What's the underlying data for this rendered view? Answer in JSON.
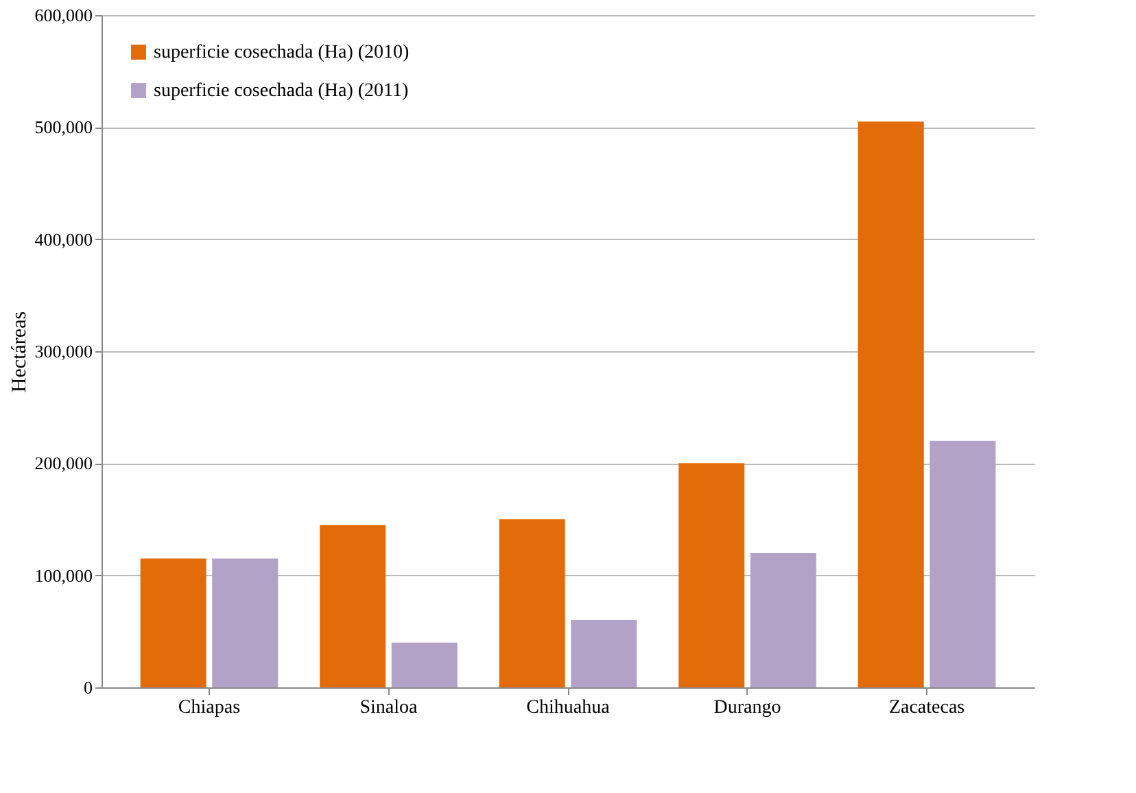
{
  "chart_data": {
    "type": "bar",
    "ylabel": "Hectáreas",
    "categories": [
      "Chiapas",
      "Sinaloa",
      "Chihuahua",
      "Durango",
      "Zacatecas"
    ],
    "series": [
      {
        "name": "superficie cosechada (Ha) (2010)",
        "color": "#e36c0a",
        "values": [
          115000,
          145000,
          150000,
          200000,
          505000
        ]
      },
      {
        "name": "superficie cosechada (Ha) (2011)",
        "color": "#b3a2c7",
        "values": [
          115000,
          40000,
          60000,
          120000,
          220000
        ]
      }
    ],
    "ylim": [
      0,
      600000
    ],
    "yticks": [
      {
        "value": 0,
        "label": "0"
      },
      {
        "value": 100000,
        "label": "100,000"
      },
      {
        "value": 200000,
        "label": "200,000"
      },
      {
        "value": 300000,
        "label": "300,000"
      },
      {
        "value": 400000,
        "label": "400,000"
      },
      {
        "value": 500000,
        "label": "500,000"
      },
      {
        "value": 600000,
        "label": "600,000"
      }
    ],
    "grid": "y",
    "legend": "top left"
  }
}
